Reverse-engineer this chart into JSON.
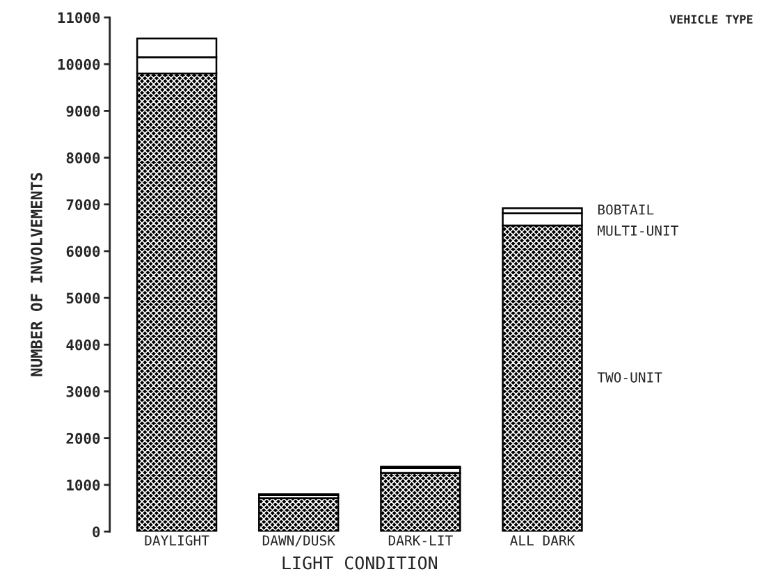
{
  "chart_data": {
    "type": "bar",
    "stacked": true,
    "xlabel": "LIGHT CONDITION",
    "ylabel": "NUMBER OF INVOLVEMENTS",
    "legend_title": "VEHICLE TYPE",
    "categories": [
      "DAYLIGHT",
      "DAWN/DUSK",
      "DARK-LIT",
      "ALL DARK"
    ],
    "series": [
      {
        "name": "TWO-UNIT",
        "color": "#000000",
        "values": [
          9800,
          720,
          1260,
          6550
        ]
      },
      {
        "name": "MULTI-UNIT",
        "color": "#ffffff",
        "values": [
          350,
          60,
          100,
          260
        ]
      },
      {
        "name": "BOBTAIL",
        "color": "#ffffff",
        "values": [
          400,
          20,
          30,
          110
        ]
      }
    ],
    "ylim": [
      0,
      11000
    ],
    "yticks": [
      0,
      1000,
      2000,
      3000,
      4000,
      5000,
      6000,
      7000,
      8000,
      9000,
      10000,
      11000
    ],
    "legend": "right",
    "grid": false
  }
}
